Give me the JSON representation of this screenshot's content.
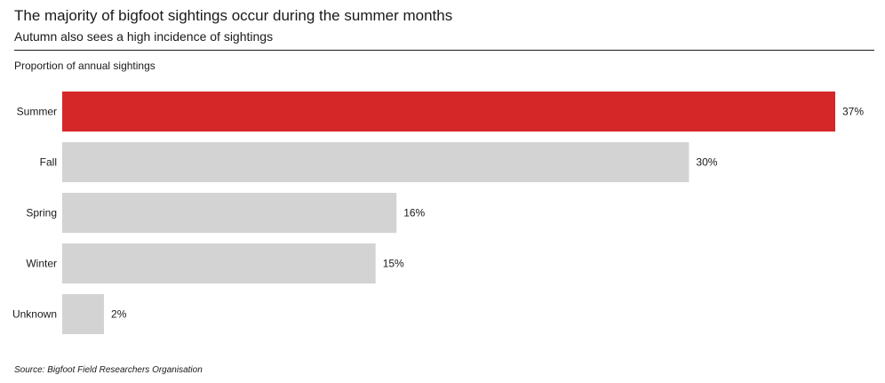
{
  "header": {
    "title": "The majority of bigfoot sightings occur during the summer months",
    "subtitle": "Autumn also sees a high incidence of sightings",
    "measure_label": "Proportion of annual sightings"
  },
  "footer": {
    "source": "Source: Bigfoot Field Researchers Organisation"
  },
  "chart_data": {
    "type": "bar",
    "orientation": "horizontal",
    "title": "The majority of bigfoot sightings occur during the summer months",
    "subtitle": "Autumn also sees a high incidence of sightings",
    "xlabel": "Proportion of annual sightings",
    "ylabel": "",
    "categories": [
      "Summer",
      "Fall",
      "Spring",
      "Winter",
      "Unknown"
    ],
    "values": [
      37,
      30,
      16,
      15,
      2
    ],
    "value_labels": [
      "37%",
      "30%",
      "16%",
      "15%",
      "2%"
    ],
    "unit": "%",
    "xlim": [
      0,
      37
    ],
    "grid": false,
    "legend": "none",
    "colors": {
      "highlight": "#d62728",
      "default": "#d3d3d3"
    },
    "highlight_index": 0
  }
}
